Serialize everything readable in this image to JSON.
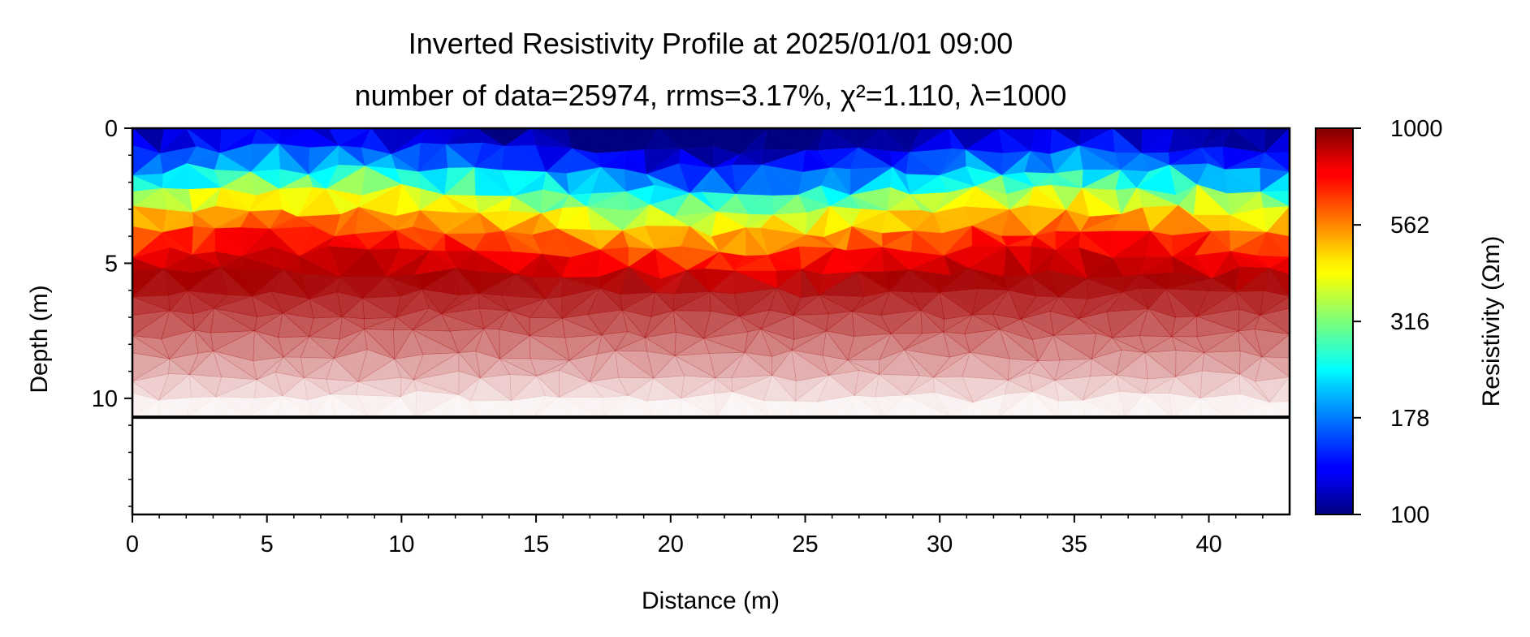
{
  "chart_data": {
    "type": "heatmap",
    "title": "Inverted Resistivity Profile at 2025/01/01 09:00",
    "subtitle": "number of data=25974, rrms=3.17%, χ²=1.110, λ=1000",
    "xlabel": "Distance (m)",
    "ylabel": "Depth (m)",
    "colorbar_label": "Resistivity (Ωm)",
    "xlim": [
      0,
      43
    ],
    "ylim": [
      14.3,
      0
    ],
    "y_inverted": true,
    "x_ticks": [
      "0",
      "5",
      "10",
      "15",
      "20",
      "25",
      "30",
      "35",
      "40"
    ],
    "x_tick_values": [
      0,
      5,
      10,
      15,
      20,
      25,
      30,
      35,
      40
    ],
    "y_ticks": [
      "0",
      "5",
      "10"
    ],
    "y_tick_values": [
      0,
      5,
      10
    ],
    "colorbar_ticks": [
      "100",
      "178",
      "316",
      "562",
      "1000"
    ],
    "colorbar_tick_values": [
      100,
      178,
      316,
      562,
      1000
    ],
    "colorbar_scale": "log",
    "colormap": "jet",
    "color_range": [
      100,
      1000
    ],
    "model_bottom_depth": 10.7,
    "profile_depths": [
      0,
      1.5,
      3,
      4.5,
      5.5
    ],
    "profile_resistivity": [
      100,
      180,
      420,
      750,
      900
    ],
    "fade_start_depth": 5.5,
    "grid": false
  }
}
